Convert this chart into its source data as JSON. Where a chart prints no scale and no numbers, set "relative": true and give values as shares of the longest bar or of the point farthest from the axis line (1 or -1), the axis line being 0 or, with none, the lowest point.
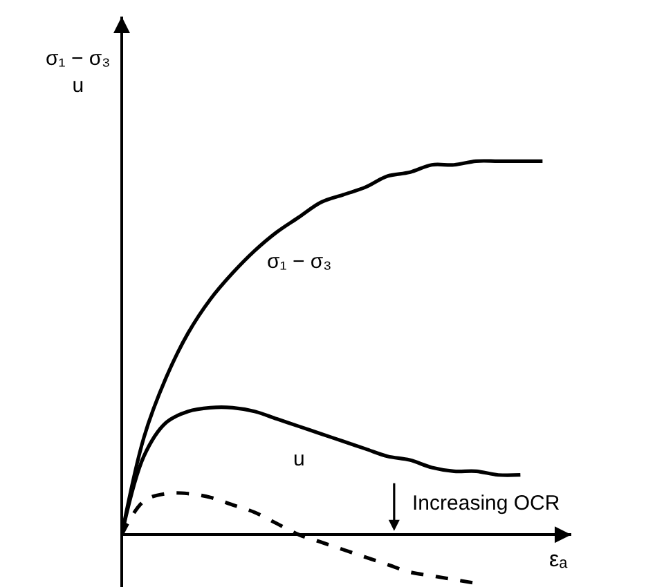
{
  "chart_data": {
    "type": "line",
    "relative": true,
    "xlabel": "εₐ",
    "ylabel": "σ₁ − σ₃\nu",
    "categories": [
      null,
      null,
      null,
      null,
      null,
      null,
      null,
      null,
      null,
      null,
      null,
      null,
      null,
      null,
      null,
      null,
      null,
      null,
      null,
      null,
      null
    ],
    "series": [
      {
        "name": "σ₁ − σ₃",
        "color": "#000000",
        "line_style": "solid",
        "values": [
          0,
          0.26,
          0.42,
          0.54,
          0.63,
          0.7,
          0.76,
          0.81,
          0.85,
          0.89,
          0.91,
          0.93,
          0.96,
          0.97,
          0.99,
          0.99,
          1.0,
          1.0,
          1.0,
          1.0,
          null
        ]
      },
      {
        "name": "u",
        "color": "#000000",
        "line_style": "solid",
        "values": [
          0,
          0.21,
          0.3,
          0.33,
          0.34,
          0.34,
          0.33,
          0.31,
          0.29,
          0.27,
          0.25,
          0.23,
          0.21,
          0.2,
          0.18,
          0.17,
          0.17,
          0.16,
          0.16,
          null,
          null
        ]
      },
      {
        "color": "#000000",
        "line_style": "dashed",
        "values": [
          0,
          0.09,
          0.11,
          0.11,
          0.1,
          0.08,
          0.06,
          0.03,
          0,
          -0.02,
          -0.04,
          -0.06,
          -0.08,
          -0.1,
          -0.11,
          -0.12,
          -0.13,
          null,
          null,
          null,
          null
        ]
      }
    ],
    "annotations": [
      "Increasing OCR"
    ]
  }
}
